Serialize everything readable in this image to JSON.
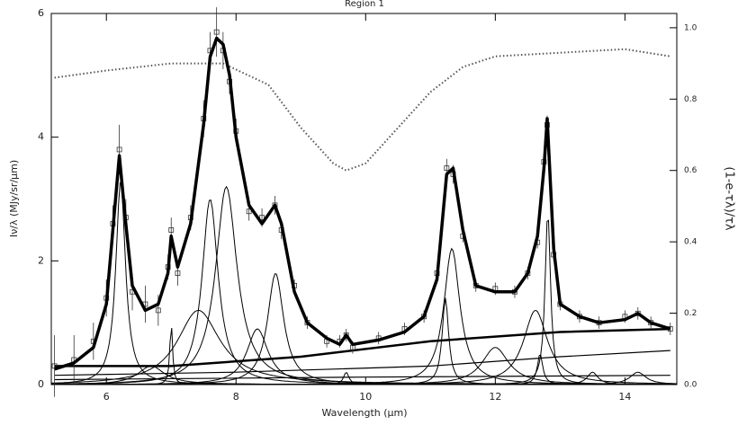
{
  "chart_data": {
    "type": "line",
    "title": "Region 1",
    "xlabel": "Wavelength (μm)",
    "ylabel": "Iν/λ (MJy/sr/μm)",
    "y2label": "(1-e-τλ)/τλ",
    "xlim": [
      5.15,
      14.8
    ],
    "xticks": [
      6,
      8,
      10,
      12,
      14
    ],
    "ylim": [
      0,
      6
    ],
    "yticks": [
      0,
      2,
      4,
      6
    ],
    "y2lim": [
      0,
      1.04
    ],
    "y2ticks": [
      {
        "value": 0,
        "label": "0.0"
      },
      {
        "value": 0.2,
        "label": "0.2"
      },
      {
        "value": 0.4,
        "label": "0.4"
      },
      {
        "value": 0.6,
        "label": "0.6"
      },
      {
        "value": 0.8,
        "label": "0.8"
      },
      {
        "value": 1,
        "label": "1.0"
      }
    ],
    "x": [
      5.2,
      5.5,
      5.8,
      6.0,
      6.1,
      6.2,
      6.3,
      6.4,
      6.6,
      6.8,
      6.95,
      7.0,
      7.1,
      7.3,
      7.5,
      7.6,
      7.7,
      7.8,
      7.9,
      8.0,
      8.2,
      8.4,
      8.6,
      8.7,
      8.9,
      9.1,
      9.4,
      9.6,
      9.7,
      9.8,
      10.2,
      10.6,
      10.9,
      11.1,
      11.25,
      11.35,
      11.5,
      11.7,
      12.0,
      12.3,
      12.5,
      12.65,
      12.75,
      12.8,
      12.9,
      13.0,
      13.3,
      13.6,
      14.0,
      14.2,
      14.4,
      14.7
    ],
    "data": {
      "color": "#333333",
      "values": [
        0.3,
        0.4,
        0.7,
        1.4,
        2.6,
        3.8,
        2.7,
        1.5,
        1.3,
        1.2,
        1.9,
        2.5,
        1.8,
        2.7,
        4.3,
        5.4,
        5.7,
        5.4,
        4.9,
        4.1,
        2.8,
        2.7,
        2.9,
        2.5,
        1.6,
        1.0,
        0.7,
        0.7,
        0.8,
        0.6,
        0.75,
        0.9,
        1.1,
        1.8,
        3.5,
        3.4,
        2.4,
        1.6,
        1.55,
        1.5,
        1.8,
        2.3,
        3.6,
        4.2,
        2.1,
        1.3,
        1.1,
        1.0,
        1.1,
        1.15,
        1.0,
        0.9
      ],
      "errors": [
        0.5,
        0.4,
        0.3,
        0.3,
        0.3,
        0.4,
        0.3,
        0.3,
        0.3,
        0.25,
        0.2,
        0.2,
        0.2,
        0.2,
        0.3,
        0.3,
        0.4,
        0.3,
        0.2,
        0.2,
        0.15,
        0.15,
        0.15,
        0.15,
        0.1,
        0.1,
        0.1,
        0.1,
        0.1,
        0.1,
        0.1,
        0.1,
        0.1,
        0.1,
        0.15,
        0.15,
        0.1,
        0.1,
        0.1,
        0.1,
        0.1,
        0.1,
        0.15,
        0.15,
        0.1,
        0.1,
        0.1,
        0.1,
        0.1,
        0.1,
        0.1,
        0.1
      ]
    },
    "series": [
      {
        "color": "#000000",
        "values": [
          0.25,
          0.35,
          0.6,
          1.3,
          2.5,
          3.7,
          2.6,
          1.6,
          1.2,
          1.3,
          1.8,
          2.4,
          1.9,
          2.6,
          4.2,
          5.3,
          5.6,
          5.5,
          5.0,
          4.0,
          2.9,
          2.6,
          2.9,
          2.6,
          1.5,
          1.0,
          0.75,
          0.65,
          0.8,
          0.65,
          0.72,
          0.85,
          1.1,
          1.7,
          3.4,
          3.5,
          2.5,
          1.6,
          1.5,
          1.5,
          1.8,
          2.4,
          3.5,
          4.3,
          2.2,
          1.3,
          1.1,
          1.0,
          1.05,
          1.15,
          1.0,
          0.9
        ]
      }
    ],
    "extinction": {
      "axis": "y2",
      "color": "#555555",
      "style": "dotted",
      "x": [
        5.2,
        6.0,
        7.0,
        7.8,
        8.5,
        9.0,
        9.5,
        9.7,
        10.0,
        10.5,
        11.0,
        11.5,
        12.0,
        13.0,
        14.0,
        14.7
      ],
      "values": [
        0.86,
        0.88,
        0.9,
        0.9,
        0.84,
        0.72,
        0.62,
        0.6,
        0.62,
        0.72,
        0.82,
        0.89,
        0.92,
        0.93,
        0.94,
        0.92
      ]
    },
    "continua": [
      {
        "color": "#000000",
        "x": [
          5.2,
          7.0,
          9.0,
          11.0,
          13.0,
          14.7
        ],
        "values": [
          0.3,
          0.3,
          0.45,
          0.7,
          0.85,
          0.9
        ]
      },
      {
        "color": "#000000",
        "x": [
          5.2,
          8.0,
          11.0,
          13.0,
          14.7
        ],
        "values": [
          0.15,
          0.2,
          0.3,
          0.45,
          0.55
        ]
      },
      {
        "color": "#000000",
        "x": [
          5.2,
          10.0,
          14.7
        ],
        "values": [
          0.08,
          0.12,
          0.15
        ]
      }
    ],
    "components": [
      {
        "center": 6.22,
        "fwhm": 0.18,
        "peak": 3.3
      },
      {
        "center": 6.69,
        "fwhm": 0.5,
        "peak": 0.3
      },
      {
        "center": 7.0,
        "fwhm": 0.05,
        "peak": 1.0
      },
      {
        "center": 7.42,
        "fwhm": 0.8,
        "peak": 1.2
      },
      {
        "center": 7.6,
        "fwhm": 0.3,
        "peak": 3.0
      },
      {
        "center": 7.85,
        "fwhm": 0.4,
        "peak": 3.2
      },
      {
        "center": 8.33,
        "fwhm": 0.4,
        "peak": 0.9
      },
      {
        "center": 8.61,
        "fwhm": 0.3,
        "peak": 1.8
      },
      {
        "center": 9.7,
        "fwhm": 0.1,
        "peak": 0.2
      },
      {
        "center": 11.23,
        "fwhm": 0.12,
        "peak": 1.4
      },
      {
        "center": 11.33,
        "fwhm": 0.3,
        "peak": 2.2
      },
      {
        "center": 12.0,
        "fwhm": 0.5,
        "peak": 0.6
      },
      {
        "center": 12.62,
        "fwhm": 0.45,
        "peak": 1.2
      },
      {
        "center": 12.69,
        "fwhm": 0.1,
        "peak": 0.5
      },
      {
        "center": 12.81,
        "fwhm": 0.1,
        "peak": 2.8
      },
      {
        "center": 13.5,
        "fwhm": 0.2,
        "peak": 0.2
      },
      {
        "center": 14.2,
        "fwhm": 0.3,
        "peak": 0.2
      }
    ]
  }
}
